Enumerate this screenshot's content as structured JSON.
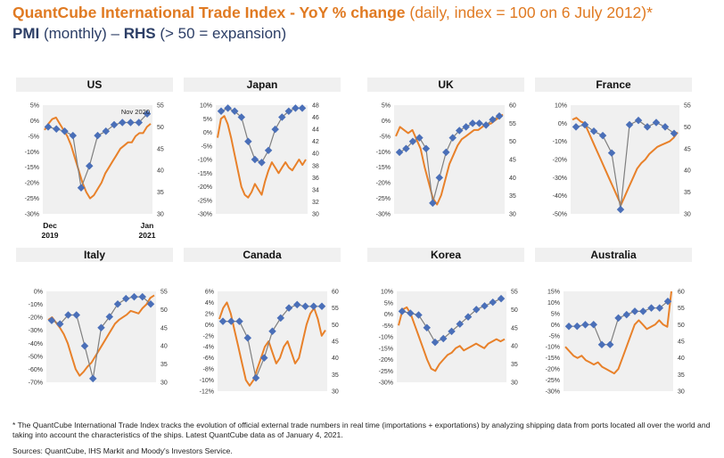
{
  "header": {
    "title_main": "QuantCube International Trade Index - YoY % change",
    "title_detail": "(daily, index = 100 on 6 July 2012)*",
    "subtitle_bold1": "PMI",
    "subtitle_mid": "(monthly) –",
    "subtitle_bold2": "RHS",
    "subtitle_end": "(> 50 = expansion)"
  },
  "colors": {
    "trade_line": "#e8812a",
    "pmi_line": "#7f7f7f",
    "pmi_marker": "#4a6fb8",
    "panel_bg": "#f0f0f0"
  },
  "chart_data": [
    {
      "type": "line",
      "title": "US",
      "left_ticks": [
        "5%",
        "0%",
        "-5%",
        "-10%",
        "-15%",
        "-20%",
        "-25%",
        "-30%"
      ],
      "right_ticks": [
        "55",
        "50",
        "45",
        "40",
        "35",
        "30"
      ],
      "left_range": [
        -30,
        5
      ],
      "right_range": [
        30,
        55
      ],
      "x_label_start": "Dec",
      "x_label_start_year": "2019",
      "x_label_end": "Jan",
      "x_label_end_year": "2021",
      "annotation": "Nov 2020",
      "trade": [
        -3,
        -1,
        0.5,
        1,
        -1,
        -3,
        -5,
        -8,
        -12,
        -16,
        -20,
        -23,
        -25,
        -24,
        -22,
        -20,
        -17,
        -15,
        -13,
        -11,
        -9,
        -8,
        -7,
        -7,
        -5,
        -4,
        -4,
        -2,
        -1
      ],
      "pmi": [
        50,
        49.5,
        49,
        48,
        36,
        41,
        48,
        49,
        50.5,
        51,
        51,
        51,
        53
      ]
    },
    {
      "type": "line",
      "title": "Japan",
      "left_ticks": [
        "10%",
        "5%",
        "0%",
        "-5%",
        "-10%",
        "-15%",
        "-20%",
        "-25%",
        "-30%"
      ],
      "right_ticks": [
        "48",
        "46",
        "44",
        "42",
        "40",
        "38",
        "36",
        "34",
        "32",
        "30"
      ],
      "left_range": [
        -30,
        10
      ],
      "right_range": [
        30,
        48
      ],
      "trade": [
        -2,
        5,
        6,
        3,
        -2,
        -8,
        -14,
        -20,
        -23,
        -24,
        -22,
        -19,
        -21,
        -23,
        -18,
        -14,
        -11,
        -13,
        -15,
        -13,
        -11,
        -13,
        -14,
        -12,
        -10,
        -12,
        -10
      ],
      "pmi": [
        47,
        47.5,
        47,
        46,
        42,
        39,
        38.5,
        40.5,
        44,
        46,
        47,
        47.5,
        47.5
      ]
    },
    {
      "type": "line",
      "title": "UK",
      "left_ticks": [
        "5%",
        "0%",
        "-5%",
        "-10%",
        "-15%",
        "-20%",
        "-25%",
        "-30%"
      ],
      "right_ticks": [
        "60",
        "55",
        "50",
        "45",
        "40",
        "35",
        "30"
      ],
      "left_range": [
        -30,
        5
      ],
      "right_range": [
        30,
        60
      ],
      "trade": [
        -5,
        -2,
        -3,
        -4,
        -3,
        -6,
        -9,
        -15,
        -20,
        -25,
        -27,
        -24,
        -19,
        -14,
        -11,
        -8,
        -6,
        -5,
        -4,
        -3,
        -3,
        -2,
        -1,
        -1,
        0,
        1,
        2
      ],
      "pmi": [
        47,
        48,
        50,
        51,
        48,
        33,
        40,
        47,
        51,
        53,
        54,
        55,
        55,
        54.5,
        56,
        57
      ]
    },
    {
      "type": "line",
      "title": "France",
      "left_ticks": [
        "10%",
        "0%",
        "-10%",
        "-20%",
        "-30%",
        "-40%",
        "-50%"
      ],
      "right_ticks": [
        "55",
        "50",
        "45",
        "40",
        "35",
        "30"
      ],
      "left_range": [
        -50,
        10
      ],
      "right_range": [
        30,
        55
      ],
      "trade": [
        2,
        3,
        1,
        0,
        -5,
        -10,
        -15,
        -20,
        -25,
        -30,
        -35,
        -40,
        -45,
        -40,
        -35,
        -30,
        -25,
        -22,
        -20,
        -17,
        -15,
        -13,
        -12,
        -11,
        -10,
        -8,
        -5
      ],
      "pmi": [
        50,
        50.5,
        49,
        48,
        44,
        31,
        50.5,
        51.5,
        50,
        51,
        50,
        48.5
      ]
    },
    {
      "type": "line",
      "title": "Italy",
      "left_ticks": [
        "0%",
        "-10%",
        "-20%",
        "-30%",
        "-40%",
        "-50%",
        "-60%",
        "-70%"
      ],
      "right_ticks": [
        "55",
        "50",
        "45",
        "40",
        "35",
        "30"
      ],
      "left_range": [
        -70,
        0
      ],
      "right_range": [
        30,
        55
      ],
      "trade": [
        -22,
        -20,
        -24,
        -28,
        -33,
        -40,
        -50,
        -60,
        -65,
        -62,
        -58,
        -55,
        -50,
        -45,
        -40,
        -35,
        -30,
        -25,
        -22,
        -20,
        -18,
        -15,
        -16,
        -17,
        -13,
        -10,
        -5,
        -3
      ],
      "pmi": [
        47,
        46,
        48.5,
        48.5,
        40,
        31,
        45,
        48,
        51.5,
        53,
        53.5,
        53.5,
        51.5
      ]
    },
    {
      "type": "line",
      "title": "Canada",
      "left_ticks": [
        "6%",
        "4%",
        "2%",
        "0%",
        "-2%",
        "-4%",
        "-6%",
        "-8%",
        "-10%",
        "-12%"
      ],
      "right_ticks": [
        "60",
        "55",
        "50",
        "45",
        "40",
        "35",
        "30"
      ],
      "left_range": [
        -12,
        6
      ],
      "right_range": [
        30,
        60
      ],
      "trade": [
        1,
        3,
        4,
        2,
        -1,
        -4,
        -7,
        -10,
        -11,
        -10,
        -8,
        -6,
        -4,
        -3,
        -5,
        -7,
        -6,
        -4,
        -3,
        -5,
        -7,
        -6,
        -3,
        0,
        2,
        3,
        1,
        -2,
        -1
      ],
      "pmi": [
        51,
        51,
        51,
        46,
        34,
        40,
        48,
        52,
        55,
        56,
        55.5,
        55.5,
        55.5
      ]
    },
    {
      "type": "line",
      "title": "Korea",
      "left_ticks": [
        "10%",
        "5%",
        "0%",
        "-5%",
        "-10%",
        "-15%",
        "-20%",
        "-25%",
        "-30%"
      ],
      "right_ticks": [
        "55",
        "50",
        "45",
        "40",
        "35",
        "30"
      ],
      "left_range": [
        -30,
        10
      ],
      "right_range": [
        30,
        55
      ],
      "trade": [
        -5,
        2,
        3,
        0,
        -5,
        -10,
        -15,
        -20,
        -24,
        -25,
        -22,
        -20,
        -18,
        -17,
        -15,
        -14,
        -16,
        -15,
        -14,
        -13,
        -14,
        -15,
        -13,
        -12,
        -11,
        -12,
        -11
      ],
      "pmi": [
        49.5,
        49,
        48.5,
        45,
        41,
        42,
        44,
        46,
        48,
        50,
        51,
        52,
        53
      ]
    },
    {
      "type": "line",
      "title": "Australia",
      "left_ticks": [
        "15%",
        "10%",
        "5%",
        "0%",
        "-5%",
        "-10%",
        "-15%",
        "-20%",
        "-25%",
        "-30%"
      ],
      "right_ticks": [
        "60",
        "55",
        "50",
        "45",
        "40",
        "35",
        "30"
      ],
      "left_range": [
        -30,
        15
      ],
      "right_range": [
        30,
        60
      ],
      "trade": [
        -10,
        -12,
        -14,
        -15,
        -14,
        -16,
        -17,
        -18,
        -17,
        -19,
        -20,
        -21,
        -22,
        -20,
        -15,
        -10,
        -5,
        0,
        2,
        0,
        -2,
        -1,
        0,
        2,
        0,
        -1,
        15
      ],
      "pmi": [
        49.5,
        49.5,
        50,
        50,
        44,
        44,
        52,
        53,
        54,
        54,
        55,
        55,
        57
      ]
    }
  ],
  "footer": {
    "note": "* The QuantCube International Trade Index tracks the evolution of official external trade numbers in real time (importations + exportations) by analyzing shipping data from ports located all over the world and taking into account the characteristics of the ships. Latest QuantCube data as of January 4, 2021.",
    "sources": "Sources: QuantCube, IHS Markit and Moody's Investors Service."
  }
}
